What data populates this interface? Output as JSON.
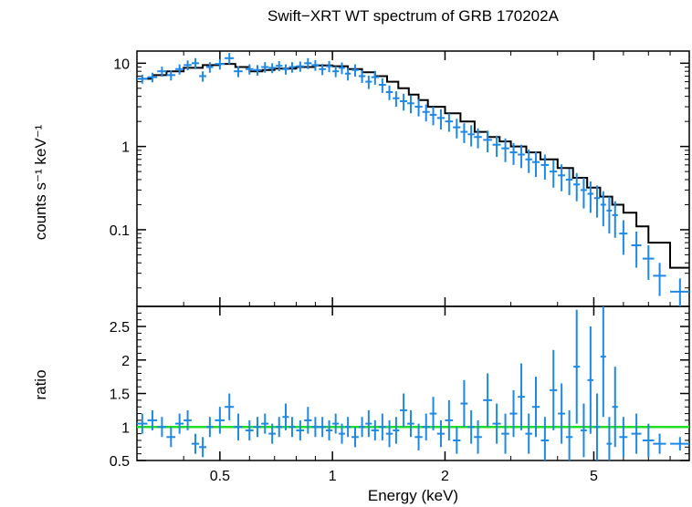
{
  "chart_data": [
    {
      "type": "scatter",
      "title": "Swift−XRT WT spectrum of GRB 170202A",
      "xlabel": "",
      "ylabel": "counts s⁻¹ keV⁻¹",
      "xscale": "log",
      "yscale": "log",
      "xlim": [
        0.3,
        9.0
      ],
      "ylim": [
        0.012,
        14
      ],
      "yticks": [
        0.1,
        1,
        10
      ],
      "ytick_labels": [
        "0.1",
        "1",
        "10"
      ],
      "colors": {
        "data": "#1e88e5",
        "model": "#000000"
      },
      "series": [
        {
          "name": "",
          "marker": "cross",
          "x": [
            0.31,
            0.33,
            0.35,
            0.37,
            0.39,
            0.41,
            0.43,
            0.45,
            0.47,
            0.5,
            0.53,
            0.56,
            0.6,
            0.63,
            0.66,
            0.69,
            0.72,
            0.75,
            0.78,
            0.82,
            0.86,
            0.9,
            0.94,
            0.98,
            1.02,
            1.06,
            1.1,
            1.15,
            1.2,
            1.25,
            1.3,
            1.36,
            1.42,
            1.48,
            1.55,
            1.62,
            1.7,
            1.78,
            1.86,
            1.95,
            2.05,
            2.15,
            2.25,
            2.35,
            2.45,
            2.6,
            2.75,
            2.9,
            3.05,
            3.2,
            3.35,
            3.5,
            3.7,
            3.9,
            4.1,
            4.3,
            4.5,
            4.7,
            4.9,
            5.1,
            5.3,
            5.5,
            5.7,
            6.0,
            6.5,
            7.0,
            7.5,
            8.5
          ],
          "y": [
            6.5,
            6.8,
            8.0,
            7.2,
            8.5,
            9.5,
            10.0,
            7.0,
            9.0,
            9.8,
            11.5,
            8.0,
            8.5,
            8.3,
            9.0,
            8.8,
            9.3,
            8.5,
            9.0,
            9.2,
            10.0,
            9.5,
            8.5,
            9.2,
            8.0,
            8.8,
            7.5,
            8.3,
            7.0,
            6.0,
            6.8,
            5.5,
            4.5,
            3.8,
            3.5,
            3.3,
            3.0,
            2.6,
            2.4,
            2.2,
            2.0,
            1.7,
            1.5,
            1.4,
            1.3,
            1.2,
            1.05,
            0.95,
            0.85,
            0.8,
            0.7,
            0.65,
            0.6,
            0.5,
            0.45,
            0.4,
            0.35,
            0.3,
            0.27,
            0.24,
            0.2,
            0.17,
            0.15,
            0.09,
            0.065,
            0.045,
            0.028,
            0.018
          ],
          "xerr": [
            0.01,
            0.01,
            0.01,
            0.01,
            0.01,
            0.01,
            0.01,
            0.01,
            0.01,
            0.015,
            0.015,
            0.015,
            0.015,
            0.015,
            0.015,
            0.015,
            0.015,
            0.015,
            0.015,
            0.02,
            0.02,
            0.02,
            0.02,
            0.02,
            0.02,
            0.02,
            0.02,
            0.025,
            0.025,
            0.025,
            0.03,
            0.03,
            0.03,
            0.03,
            0.035,
            0.035,
            0.04,
            0.04,
            0.04,
            0.045,
            0.05,
            0.05,
            0.05,
            0.05,
            0.06,
            0.07,
            0.07,
            0.07,
            0.07,
            0.07,
            0.07,
            0.08,
            0.09,
            0.09,
            0.09,
            0.09,
            0.09,
            0.09,
            0.09,
            0.09,
            0.09,
            0.09,
            0.1,
            0.15,
            0.2,
            0.25,
            0.3,
            0.5
          ],
          "yerr": [
            0.8,
            0.9,
            1.1,
            1.0,
            1.2,
            1.3,
            1.5,
            1.0,
            1.3,
            1.4,
            1.8,
            1.2,
            1.2,
            1.2,
            1.3,
            1.2,
            1.3,
            1.2,
            1.3,
            1.3,
            1.5,
            1.4,
            1.3,
            1.4,
            1.2,
            1.4,
            1.3,
            1.4,
            1.2,
            1.1,
            1.3,
            1.1,
            0.9,
            0.8,
            0.8,
            0.8,
            0.7,
            0.6,
            0.6,
            0.6,
            0.5,
            0.45,
            0.4,
            0.4,
            0.35,
            0.35,
            0.3,
            0.3,
            0.25,
            0.25,
            0.22,
            0.22,
            0.2,
            0.18,
            0.16,
            0.14,
            0.13,
            0.12,
            0.11,
            0.1,
            0.09,
            0.08,
            0.07,
            0.04,
            0.03,
            0.02,
            0.012,
            0.008
          ]
        },
        {
          "name": "",
          "kind": "model-step",
          "x": [
            0.3,
            0.33,
            0.36,
            0.4,
            0.45,
            0.5,
            0.55,
            0.6,
            0.65,
            0.7,
            0.8,
            0.9,
            1.0,
            1.1,
            1.2,
            1.3,
            1.4,
            1.5,
            1.6,
            1.7,
            1.8,
            2.0,
            2.2,
            2.4,
            2.6,
            2.8,
            3.0,
            3.3,
            3.6,
            4.0,
            4.4,
            4.8,
            5.2,
            5.6,
            6.0,
            6.5,
            7.0,
            8.0,
            9.0
          ],
          "y": [
            6.5,
            7.2,
            8.0,
            8.8,
            9.5,
            9.8,
            9.0,
            8.0,
            8.3,
            8.6,
            9.0,
            9.4,
            9.2,
            8.5,
            7.8,
            7.0,
            6.0,
            5.0,
            4.2,
            3.6,
            3.0,
            2.5,
            2.0,
            1.5,
            1.3,
            1.15,
            1.0,
            0.85,
            0.7,
            0.55,
            0.42,
            0.32,
            0.25,
            0.2,
            0.16,
            0.11,
            0.07,
            0.035,
            0.035
          ]
        }
      ]
    },
    {
      "type": "scatter",
      "title": "",
      "xlabel": "Energy (keV)",
      "ylabel": "ratio",
      "xscale": "log",
      "xlim": [
        0.3,
        9.0
      ],
      "ylim": [
        0.5,
        2.8
      ],
      "yticks": [
        0.5,
        1,
        1.5,
        2,
        2.5
      ],
      "ytick_labels": [
        "0.5",
        "1",
        "1.5",
        "2",
        "2.5"
      ],
      "xticks": [
        0.5,
        1,
        2,
        5
      ],
      "xtick_labels": [
        "0.5",
        "1",
        "2",
        "5"
      ],
      "reference_line": {
        "y": 1.0,
        "color": "#22dd22"
      },
      "colors": {
        "data": "#1e88e5"
      },
      "series": [
        {
          "name": "",
          "marker": "cross",
          "x": [
            0.31,
            0.33,
            0.35,
            0.37,
            0.39,
            0.41,
            0.43,
            0.45,
            0.47,
            0.5,
            0.53,
            0.56,
            0.6,
            0.63,
            0.66,
            0.69,
            0.72,
            0.75,
            0.78,
            0.82,
            0.86,
            0.9,
            0.94,
            0.98,
            1.02,
            1.06,
            1.1,
            1.15,
            1.2,
            1.25,
            1.3,
            1.36,
            1.42,
            1.48,
            1.55,
            1.62,
            1.7,
            1.78,
            1.86,
            1.95,
            2.05,
            2.15,
            2.25,
            2.35,
            2.45,
            2.6,
            2.75,
            2.9,
            3.05,
            3.2,
            3.35,
            3.5,
            3.7,
            3.9,
            4.1,
            4.3,
            4.5,
            4.7,
            4.9,
            5.1,
            5.3,
            5.5,
            5.7,
            6.0,
            6.5,
            7.0,
            7.5,
            8.5
          ],
          "y": [
            1.05,
            1.1,
            1.0,
            0.85,
            1.05,
            1.1,
            0.75,
            0.7,
            1.0,
            1.1,
            1.3,
            1.0,
            0.95,
            1.0,
            1.05,
            0.9,
            1.0,
            1.15,
            1.0,
            0.95,
            1.1,
            1.0,
            1.0,
            0.95,
            1.05,
            0.9,
            1.0,
            0.85,
            1.0,
            1.05,
            0.95,
            1.0,
            0.9,
            0.95,
            1.25,
            1.05,
            0.85,
            1.0,
            1.2,
            0.9,
            1.1,
            0.8,
            1.35,
            1.0,
            0.85,
            1.4,
            1.05,
            0.9,
            1.2,
            1.45,
            0.9,
            1.3,
            0.8,
            1.55,
            1.2,
            0.85,
            1.9,
            0.95,
            1.7,
            1.0,
            2.05,
            0.75,
            1.3,
            0.85,
            0.9,
            0.8,
            0.75,
            0.75
          ],
          "xerr": [
            0.01,
            0.01,
            0.01,
            0.01,
            0.01,
            0.01,
            0.01,
            0.01,
            0.01,
            0.015,
            0.015,
            0.015,
            0.015,
            0.015,
            0.015,
            0.015,
            0.015,
            0.015,
            0.015,
            0.02,
            0.02,
            0.02,
            0.02,
            0.02,
            0.02,
            0.02,
            0.02,
            0.025,
            0.025,
            0.025,
            0.03,
            0.03,
            0.03,
            0.03,
            0.035,
            0.035,
            0.04,
            0.04,
            0.04,
            0.045,
            0.05,
            0.05,
            0.05,
            0.05,
            0.06,
            0.07,
            0.07,
            0.07,
            0.07,
            0.07,
            0.07,
            0.08,
            0.09,
            0.09,
            0.09,
            0.09,
            0.09,
            0.09,
            0.09,
            0.09,
            0.09,
            0.09,
            0.1,
            0.15,
            0.2,
            0.25,
            0.3,
            0.5
          ],
          "yerr": [
            0.15,
            0.15,
            0.15,
            0.15,
            0.15,
            0.15,
            0.15,
            0.15,
            0.15,
            0.2,
            0.2,
            0.2,
            0.15,
            0.15,
            0.15,
            0.15,
            0.15,
            0.2,
            0.15,
            0.15,
            0.2,
            0.15,
            0.15,
            0.15,
            0.15,
            0.15,
            0.15,
            0.15,
            0.15,
            0.2,
            0.15,
            0.2,
            0.2,
            0.2,
            0.25,
            0.2,
            0.2,
            0.2,
            0.25,
            0.2,
            0.3,
            0.2,
            0.35,
            0.25,
            0.25,
            0.4,
            0.3,
            0.3,
            0.35,
            0.5,
            0.3,
            0.45,
            0.35,
            0.6,
            0.45,
            0.4,
            0.85,
            0.4,
            0.8,
            0.5,
            0.9,
            0.4,
            0.6,
            0.3,
            0.3,
            0.25,
            0.15,
            0.1
          ]
        }
      ]
    }
  ]
}
